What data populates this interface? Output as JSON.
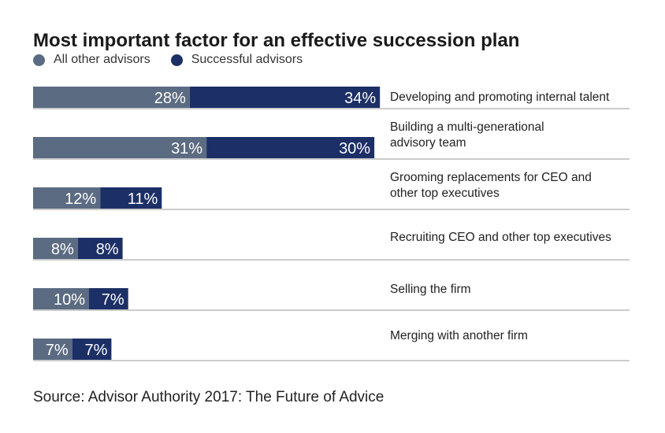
{
  "chart_data": {
    "type": "bar",
    "stacked": true,
    "orientation": "horizontal",
    "title": "Most important factor for an effective succession plan",
    "categories": [
      [
        "Developing and promoting internal talent"
      ],
      [
        "Building a multi-generational",
        "advisory team"
      ],
      [
        "Grooming replacements for CEO and",
        "other top executives"
      ],
      [
        "Recruiting CEO and other top executives"
      ],
      [
        "Selling the firm"
      ],
      [
        "Merging with another firm"
      ]
    ],
    "series": [
      {
        "name": "All other advisors",
        "color": "#5b6b82",
        "values": [
          28,
          31,
          12,
          8,
          10,
          7
        ],
        "labels": [
          "28%",
          "31%",
          "12%",
          "8%",
          "10%",
          "7%"
        ]
      },
      {
        "name": "Successful advisors",
        "color": "#1c2f66",
        "values": [
          34,
          30,
          11,
          8,
          7,
          7
        ],
        "labels": [
          "34%",
          "30%",
          "11%",
          "8%",
          "7%",
          "7%"
        ]
      }
    ],
    "value_unit": "%",
    "legend_position": "top-left",
    "source": "Source: Advisor Authority 2017: The Future of Advice"
  },
  "colors": {
    "label_text": "#ffffff",
    "separator": "#9a9a9a",
    "category_text": "#222222"
  }
}
